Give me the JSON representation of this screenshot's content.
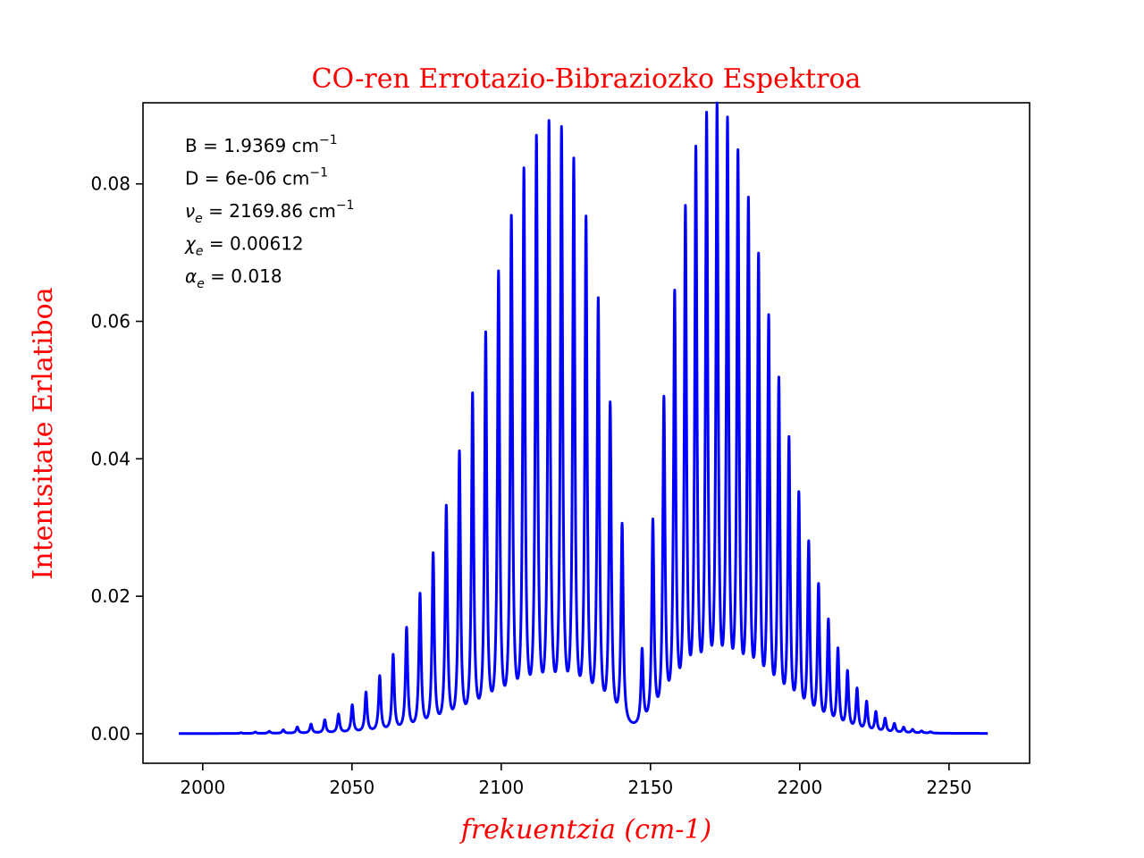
{
  "chart_data": {
    "type": "line",
    "title": "CO-ren Errotazio-Bibraziozko Espektroa",
    "xlabel": "frekuentzia (cm-1)",
    "ylabel": "Intentsitate Erlatiboa",
    "xlim": [
      1980,
      2277
    ],
    "ylim": [
      -0.0043,
      0.0918
    ],
    "x_ticks": [
      2000,
      2050,
      2100,
      2150,
      2200,
      2250
    ],
    "x_tick_labels": [
      "2000",
      "2050",
      "2100",
      "2150",
      "2200",
      "2250"
    ],
    "y_ticks": [
      0.0,
      0.02,
      0.04,
      0.06,
      0.08
    ],
    "y_tick_labels": [
      "0.00",
      "0.02",
      "0.04",
      "0.06",
      "0.08"
    ],
    "grid": false,
    "line_color": "#0000ff",
    "label_color": "#ff0000",
    "annotations": [
      {
        "label": "B = 1.9369 cm",
        "sup": "−1"
      },
      {
        "label": "D = 6e-06 cm",
        "sup": "−1"
      },
      {
        "label": "ν",
        "sub": "e",
        "rest": " = 2169.86 cm",
        "sup": "−1"
      },
      {
        "label": "χ",
        "sub": "e",
        "rest": " = 0.00612"
      },
      {
        "label": "α",
        "sub": "e",
        "rest": " = 0.018"
      }
    ],
    "series": [
      {
        "x_range": [
          1992,
          2263
        ],
        "baseline": 0.0,
        "peaks_p_branch": [
          {
            "x": 2012.8,
            "y": 0.0001
          },
          {
            "x": 2017.6,
            "y": 0.0002
          },
          {
            "x": 2022.3,
            "y": 0.0003
          },
          {
            "x": 2027.0,
            "y": 0.0005
          },
          {
            "x": 2031.7,
            "y": 0.0009
          },
          {
            "x": 2036.3,
            "y": 0.0013
          },
          {
            "x": 2040.9,
            "y": 0.0019
          },
          {
            "x": 2045.5,
            "y": 0.0027
          },
          {
            "x": 2050.1,
            "y": 0.004
          },
          {
            "x": 2054.7,
            "y": 0.0058
          },
          {
            "x": 2059.3,
            "y": 0.0081
          },
          {
            "x": 2063.8,
            "y": 0.0111
          },
          {
            "x": 2068.3,
            "y": 0.0149
          },
          {
            "x": 2072.8,
            "y": 0.0197
          },
          {
            "x": 2077.2,
            "y": 0.0254
          },
          {
            "x": 2081.6,
            "y": 0.0321
          },
          {
            "x": 2086.0,
            "y": 0.0398
          },
          {
            "x": 2090.4,
            "y": 0.048
          },
          {
            "x": 2094.8,
            "y": 0.0566
          },
          {
            "x": 2099.1,
            "y": 0.0652
          },
          {
            "x": 2103.4,
            "y": 0.073
          },
          {
            "x": 2107.6,
            "y": 0.0797
          },
          {
            "x": 2111.8,
            "y": 0.0843
          },
          {
            "x": 2116.0,
            "y": 0.0864
          },
          {
            "x": 2120.2,
            "y": 0.0855
          },
          {
            "x": 2124.3,
            "y": 0.081
          },
          {
            "x": 2128.4,
            "y": 0.0728
          },
          {
            "x": 2132.5,
            "y": 0.0612
          },
          {
            "x": 2136.5,
            "y": 0.0464
          },
          {
            "x": 2140.5,
            "y": 0.0292
          }
        ],
        "peaks_r_branch": [
          {
            "x": 2147.2,
            "y": 0.011
          },
          {
            "x": 2150.8,
            "y": 0.0295
          },
          {
            "x": 2154.5,
            "y": 0.0468
          },
          {
            "x": 2158.1,
            "y": 0.0617
          },
          {
            "x": 2161.7,
            "y": 0.0735
          },
          {
            "x": 2165.2,
            "y": 0.0818
          },
          {
            "x": 2168.8,
            "y": 0.0865
          },
          {
            "x": 2172.3,
            "y": 0.0877
          },
          {
            "x": 2175.8,
            "y": 0.0857
          },
          {
            "x": 2179.3,
            "y": 0.0811
          },
          {
            "x": 2182.8,
            "y": 0.0744
          },
          {
            "x": 2186.2,
            "y": 0.0665
          },
          {
            "x": 2189.6,
            "y": 0.0579
          },
          {
            "x": 2193.0,
            "y": 0.0492
          },
          {
            "x": 2196.4,
            "y": 0.0409
          },
          {
            "x": 2199.7,
            "y": 0.0332
          },
          {
            "x": 2203.0,
            "y": 0.0264
          },
          {
            "x": 2206.3,
            "y": 0.0205
          },
          {
            "x": 2209.6,
            "y": 0.0156
          },
          {
            "x": 2212.8,
            "y": 0.0116
          },
          {
            "x": 2216.0,
            "y": 0.0085
          },
          {
            "x": 2219.2,
            "y": 0.0061
          },
          {
            "x": 2222.4,
            "y": 0.0043
          },
          {
            "x": 2225.5,
            "y": 0.0029
          },
          {
            "x": 2228.6,
            "y": 0.002
          },
          {
            "x": 2231.7,
            "y": 0.0013
          },
          {
            "x": 2234.8,
            "y": 0.0008
          },
          {
            "x": 2237.8,
            "y": 0.0005
          },
          {
            "x": 2240.8,
            "y": 0.0003
          },
          {
            "x": 2243.8,
            "y": 0.0002
          }
        ]
      }
    ]
  }
}
